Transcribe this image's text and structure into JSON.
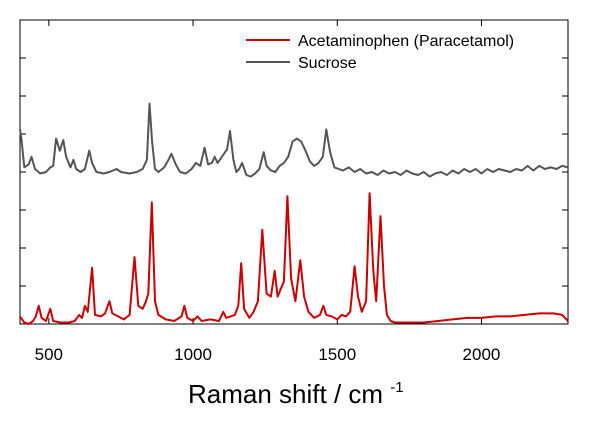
{
  "chart_data": {
    "type": "line",
    "title": "",
    "xlabel": "Raman shift / cm",
    "xlabel_superscript": "-1",
    "ylabel": "",
    "xlim": [
      400,
      2300
    ],
    "x_ticks": [
      500,
      1000,
      1500,
      2000
    ],
    "x_tick_labels": [
      "500",
      "1000",
      "1500",
      "2000"
    ],
    "legend_position": "top-right",
    "grid": false,
    "series": [
      {
        "name": "Acetaminophen (Paracetamol)",
        "color": "#cc0000",
        "baseline": 0,
        "points": [
          [
            400,
            0.05
          ],
          [
            415,
            0.01
          ],
          [
            430,
            0.0
          ],
          [
            445,
            0.02
          ],
          [
            455,
            0.05
          ],
          [
            465,
            0.12
          ],
          [
            475,
            0.04
          ],
          [
            490,
            0.02
          ],
          [
            505,
            0.1
          ],
          [
            515,
            0.02
          ],
          [
            540,
            0.01
          ],
          [
            570,
            0.01
          ],
          [
            590,
            0.02
          ],
          [
            605,
            0.06
          ],
          [
            615,
            0.04
          ],
          [
            625,
            0.12
          ],
          [
            635,
            0.08
          ],
          [
            650,
            0.37
          ],
          [
            660,
            0.06
          ],
          [
            680,
            0.05
          ],
          [
            695,
            0.07
          ],
          [
            710,
            0.15
          ],
          [
            720,
            0.07
          ],
          [
            740,
            0.05
          ],
          [
            760,
            0.03
          ],
          [
            780,
            0.06
          ],
          [
            797,
            0.44
          ],
          [
            810,
            0.12
          ],
          [
            825,
            0.1
          ],
          [
            835,
            0.14
          ],
          [
            845,
            0.2
          ],
          [
            857,
            0.8
          ],
          [
            868,
            0.15
          ],
          [
            880,
            0.06
          ],
          [
            905,
            0.03
          ],
          [
            935,
            0.02
          ],
          [
            960,
            0.05
          ],
          [
            970,
            0.12
          ],
          [
            980,
            0.04
          ],
          [
            1000,
            0.02
          ],
          [
            1015,
            0.05
          ],
          [
            1030,
            0.02
          ],
          [
            1060,
            0.03
          ],
          [
            1090,
            0.02
          ],
          [
            1105,
            0.08
          ],
          [
            1115,
            0.04
          ],
          [
            1130,
            0.05
          ],
          [
            1145,
            0.06
          ],
          [
            1157,
            0.12
          ],
          [
            1167,
            0.4
          ],
          [
            1177,
            0.1
          ],
          [
            1195,
            0.04
          ],
          [
            1210,
            0.08
          ],
          [
            1225,
            0.15
          ],
          [
            1240,
            0.62
          ],
          [
            1255,
            0.2
          ],
          [
            1270,
            0.18
          ],
          [
            1283,
            0.35
          ],
          [
            1293,
            0.18
          ],
          [
            1315,
            0.28
          ],
          [
            1327,
            0.84
          ],
          [
            1340,
            0.3
          ],
          [
            1355,
            0.15
          ],
          [
            1372,
            0.42
          ],
          [
            1385,
            0.18
          ],
          [
            1400,
            0.08
          ],
          [
            1420,
            0.04
          ],
          [
            1440,
            0.06
          ],
          [
            1452,
            0.12
          ],
          [
            1462,
            0.06
          ],
          [
            1480,
            0.05
          ],
          [
            1500,
            0.03
          ],
          [
            1515,
            0.06
          ],
          [
            1530,
            0.05
          ],
          [
            1545,
            0.08
          ],
          [
            1560,
            0.38
          ],
          [
            1572,
            0.18
          ],
          [
            1585,
            0.08
          ],
          [
            1600,
            0.15
          ],
          [
            1612,
            0.86
          ],
          [
            1625,
            0.35
          ],
          [
            1635,
            0.15
          ],
          [
            1650,
            0.71
          ],
          [
            1662,
            0.25
          ],
          [
            1672,
            0.06
          ],
          [
            1685,
            0.02
          ],
          [
            1700,
            0.01
          ],
          [
            1750,
            0.01
          ],
          [
            1800,
            0.01
          ],
          [
            1850,
            0.02
          ],
          [
            1900,
            0.03
          ],
          [
            1950,
            0.04
          ],
          [
            2000,
            0.04
          ],
          [
            2050,
            0.05
          ],
          [
            2100,
            0.05
          ],
          [
            2150,
            0.06
          ],
          [
            2200,
            0.07
          ],
          [
            2250,
            0.07
          ],
          [
            2280,
            0.06
          ],
          [
            2300,
            0.02
          ]
        ]
      },
      {
        "name": "Sucrose",
        "color": "#555555",
        "baseline": 1,
        "points": [
          [
            400,
            1.28
          ],
          [
            405,
            1.22
          ],
          [
            415,
            1.03
          ],
          [
            430,
            1.05
          ],
          [
            440,
            1.1
          ],
          [
            452,
            1.02
          ],
          [
            470,
            0.99
          ],
          [
            490,
            1.0
          ],
          [
            505,
            1.03
          ],
          [
            515,
            1.04
          ],
          [
            525,
            1.22
          ],
          [
            538,
            1.14
          ],
          [
            550,
            1.21
          ],
          [
            560,
            1.1
          ],
          [
            575,
            1.03
          ],
          [
            585,
            1.08
          ],
          [
            595,
            1.02
          ],
          [
            610,
            1.0
          ],
          [
            625,
            1.02
          ],
          [
            640,
            1.14
          ],
          [
            650,
            1.06
          ],
          [
            665,
            1.0
          ],
          [
            690,
            0.99
          ],
          [
            710,
            1.0
          ],
          [
            735,
            1.02
          ],
          [
            750,
            1.0
          ],
          [
            780,
            0.99
          ],
          [
            805,
            1.0
          ],
          [
            825,
            1.02
          ],
          [
            840,
            1.08
          ],
          [
            849,
            1.45
          ],
          [
            858,
            1.2
          ],
          [
            868,
            1.02
          ],
          [
            880,
            1.0
          ],
          [
            900,
            1.03
          ],
          [
            915,
            1.08
          ],
          [
            925,
            1.12
          ],
          [
            940,
            1.05
          ],
          [
            955,
            1.0
          ],
          [
            975,
            0.99
          ],
          [
            995,
            1.02
          ],
          [
            1010,
            1.06
          ],
          [
            1025,
            1.04
          ],
          [
            1040,
            1.16
          ],
          [
            1052,
            1.05
          ],
          [
            1065,
            1.06
          ],
          [
            1075,
            1.1
          ],
          [
            1085,
            1.06
          ],
          [
            1100,
            1.1
          ],
          [
            1118,
            1.15
          ],
          [
            1128,
            1.27
          ],
          [
            1140,
            1.08
          ],
          [
            1150,
            1.0
          ],
          [
            1160,
            1.02
          ],
          [
            1170,
            1.06
          ],
          [
            1185,
            0.98
          ],
          [
            1200,
            0.97
          ],
          [
            1215,
            0.99
          ],
          [
            1230,
            1.02
          ],
          [
            1245,
            1.13
          ],
          [
            1255,
            1.04
          ],
          [
            1270,
            1.01
          ],
          [
            1285,
            1.0
          ],
          [
            1300,
            1.04
          ],
          [
            1315,
            1.06
          ],
          [
            1330,
            1.1
          ],
          [
            1345,
            1.2
          ],
          [
            1360,
            1.22
          ],
          [
            1375,
            1.2
          ],
          [
            1390,
            1.14
          ],
          [
            1405,
            1.07
          ],
          [
            1420,
            1.04
          ],
          [
            1435,
            1.06
          ],
          [
            1450,
            1.1
          ],
          [
            1462,
            1.28
          ],
          [
            1475,
            1.13
          ],
          [
            1490,
            1.03
          ],
          [
            1505,
            1.02
          ],
          [
            1520,
            1.01
          ],
          [
            1540,
            1.03
          ],
          [
            1560,
            1.0
          ],
          [
            1580,
            1.02
          ],
          [
            1600,
            0.99
          ],
          [
            1620,
            1.0
          ],
          [
            1640,
            0.98
          ],
          [
            1660,
            1.01
          ],
          [
            1680,
            0.99
          ],
          [
            1700,
            1.0
          ],
          [
            1720,
            0.98
          ],
          [
            1740,
            1.01
          ],
          [
            1760,
            0.99
          ],
          [
            1780,
            0.98
          ],
          [
            1800,
            1.0
          ],
          [
            1820,
            0.97
          ],
          [
            1840,
            0.99
          ],
          [
            1860,
            1.0
          ],
          [
            1880,
            0.98
          ],
          [
            1900,
            1.01
          ],
          [
            1920,
            0.99
          ],
          [
            1940,
            1.02
          ],
          [
            1960,
            1.0
          ],
          [
            1980,
            1.02
          ],
          [
            2000,
            0.99
          ],
          [
            2020,
            1.02
          ],
          [
            2040,
            1.0
          ],
          [
            2060,
            1.02
          ],
          [
            2080,
            1.01
          ],
          [
            2100,
            1.0
          ],
          [
            2120,
            1.02
          ],
          [
            2140,
            1.01
          ],
          [
            2160,
            1.04
          ],
          [
            2180,
            1.01
          ],
          [
            2200,
            1.04
          ],
          [
            2220,
            1.02
          ],
          [
            2240,
            1.03
          ],
          [
            2260,
            1.02
          ],
          [
            2280,
            1.04
          ],
          [
            2300,
            1.03
          ]
        ]
      }
    ]
  }
}
